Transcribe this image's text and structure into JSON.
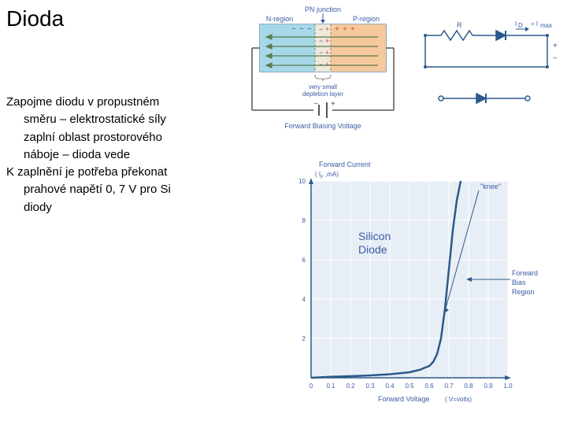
{
  "title": "Dioda",
  "paragraph1_line1": "Zapojme diodu v propustném",
  "paragraph1_line2": "směru – elektrostatické síly",
  "paragraph1_line3": "zaplní oblast prostorového",
  "paragraph1_line4": "náboje – dioda vede",
  "paragraph2_line1": "K zaplnění je potřeba překonat",
  "paragraph2_line2": "prahové napětí  0, 7 V pro Si",
  "paragraph2_line3": "diody",
  "junction": {
    "title": "PN junction",
    "n_label": "N-region",
    "p_label": "P-region",
    "depletion_label": "very small",
    "depletion_label2": "depletion layer",
    "voltage_label": "Forward Biasing Voltage",
    "n_color": "#a6d8e8",
    "p_color": "#f5c99b",
    "border_color": "#6b8fb5",
    "arrow_color": "#5b7a52",
    "plus_color": "#d14848",
    "minus_color": "#3b5ba5"
  },
  "circuit": {
    "r_label": "R",
    "current_label": "I",
    "current_sub": "D",
    "imax_label": "= I",
    "imax_sub": "max",
    "wire_color": "#2b5a8a",
    "diode_fill": "#2b5a8a"
  },
  "chart": {
    "type": "line",
    "ylabel": "Forward Current",
    "ylabel_unit": "( I",
    "ylabel_unit2": ",mA)",
    "xlabel": "Forward Voltage",
    "xlabel_unit": "( V=volts)",
    "annotation_silicon": "Silicon",
    "annotation_diode": "Diode",
    "annotation_knee": "\"knee\"",
    "annotation_region1": "Forward",
    "annotation_region2": "Bias",
    "annotation_region3": "Region",
    "xlim": [
      0,
      1.0
    ],
    "ylim": [
      0,
      10
    ],
    "xticks": [
      "0",
      "0.1",
      "0.2",
      "0.3",
      "0.4",
      "0.5",
      "0.6",
      "0.7",
      "0.8",
      "0.9",
      "1.0"
    ],
    "yticks": [
      "2",
      "4",
      "6",
      "8",
      "10"
    ],
    "background_color": "#e8eef5",
    "grid_color": "#ffffff",
    "line_color": "#2b5a8a",
    "axis_label_color": "#3b5ba5",
    "data_points": [
      [
        0.0,
        0.0
      ],
      [
        0.1,
        0.05
      ],
      [
        0.2,
        0.08
      ],
      [
        0.3,
        0.12
      ],
      [
        0.4,
        0.18
      ],
      [
        0.5,
        0.28
      ],
      [
        0.55,
        0.4
      ],
      [
        0.6,
        0.6
      ],
      [
        0.62,
        0.8
      ],
      [
        0.64,
        1.2
      ],
      [
        0.66,
        2.0
      ],
      [
        0.68,
        3.5
      ],
      [
        0.7,
        5.5
      ],
      [
        0.72,
        7.5
      ],
      [
        0.74,
        9.0
      ],
      [
        0.76,
        10.0
      ]
    ],
    "knee_x": 0.65,
    "title_fontsize": 10,
    "tick_fontsize": 8
  }
}
